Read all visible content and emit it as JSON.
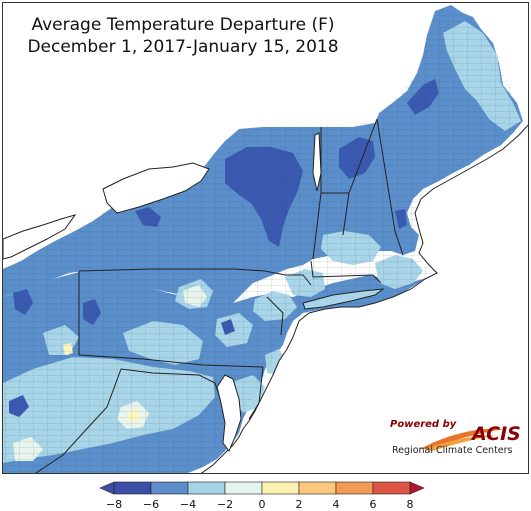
{
  "title": {
    "line1": "Average Temperature Departure (F)",
    "line2": "December 1, 2017-January 15, 2018"
  },
  "map": {
    "region": "Northeast United States",
    "variable": "Average Temperature Departure",
    "units": "F",
    "dominant_departure_range": "-6 to -2",
    "coldest_areas": [
      "northern New York",
      "northern Vermont",
      "northern New Hampshire",
      "northern Maine",
      "western Pennsylvania"
    ],
    "colors": {
      "water": "#ffffff",
      "land_-8_-6": "#3a59b0",
      "land_-6_-4": "#5a8fcb",
      "land_-4_-2": "#a8d6e8",
      "land_-2_0": "#e7f5ec",
      "land_0_2": "#fdf7bf",
      "state_border": "#222222",
      "county_border": "#3c4a63"
    }
  },
  "logo": {
    "powered_by": "Powered by",
    "acis": "ACIS",
    "subtitle": "Regional Climate Centers",
    "swoosh_color": "#e8742a"
  },
  "legend": {
    "ticks": [
      "−8",
      "−6",
      "−4",
      "−2",
      "0",
      "2",
      "4",
      "6",
      "8"
    ],
    "colors": [
      "#3b4fa6",
      "#5e8ecb",
      "#a3d3e8",
      "#e6f4ee",
      "#fdf3b0",
      "#fbc77e",
      "#f39a56",
      "#dd5444",
      "#b5162e"
    ]
  }
}
